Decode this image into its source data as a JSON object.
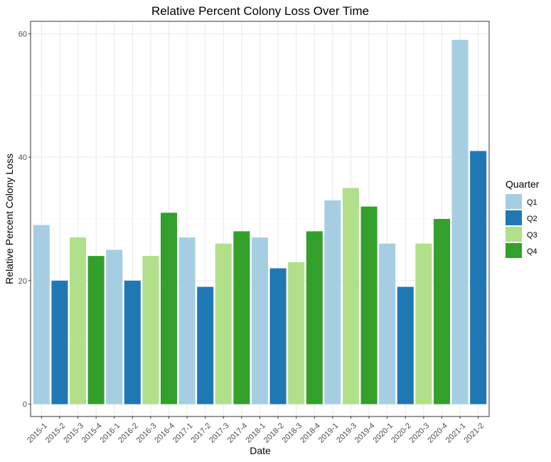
{
  "chart_data": {
    "type": "bar",
    "title": "Relative Percent Colony Loss Over Time",
    "xlabel": "Date",
    "ylabel": "Relative Percent Colony Loss",
    "ylim": [
      -2,
      62
    ],
    "yticks": [
      0,
      20,
      40,
      60
    ],
    "grid": true,
    "legend_position": "right",
    "legend": {
      "title": "Quarter",
      "entries": [
        {
          "name": "Q1",
          "color": "#a6cee3"
        },
        {
          "name": "Q2",
          "color": "#1f78b4"
        },
        {
          "name": "Q3",
          "color": "#b2df8a"
        },
        {
          "name": "Q4",
          "color": "#33a02c"
        }
      ]
    },
    "categories": [
      "2015-1",
      "2015-2",
      "2015-3",
      "2015-4",
      "2016-1",
      "2016-2",
      "2016-3",
      "2016-4",
      "2017-1",
      "2017-2",
      "2017-3",
      "2017-4",
      "2018-1",
      "2018-2",
      "2018-3",
      "2018-4",
      "2019-1",
      "2019-3",
      "2019-4",
      "2020-1",
      "2020-2",
      "2020-3",
      "2020-4",
      "2021-1",
      "2021-2"
    ],
    "quarters": [
      "Q1",
      "Q2",
      "Q3",
      "Q4",
      "Q1",
      "Q2",
      "Q3",
      "Q4",
      "Q1",
      "Q2",
      "Q3",
      "Q4",
      "Q1",
      "Q2",
      "Q3",
      "Q4",
      "Q1",
      "Q3",
      "Q4",
      "Q1",
      "Q2",
      "Q3",
      "Q4",
      "Q1",
      "Q2"
    ],
    "values": [
      29,
      20,
      27,
      24,
      25,
      20,
      24,
      31,
      27,
      19,
      26,
      28,
      27,
      22,
      23,
      28,
      33,
      35,
      32,
      26,
      19,
      26,
      30,
      59,
      41
    ]
  }
}
